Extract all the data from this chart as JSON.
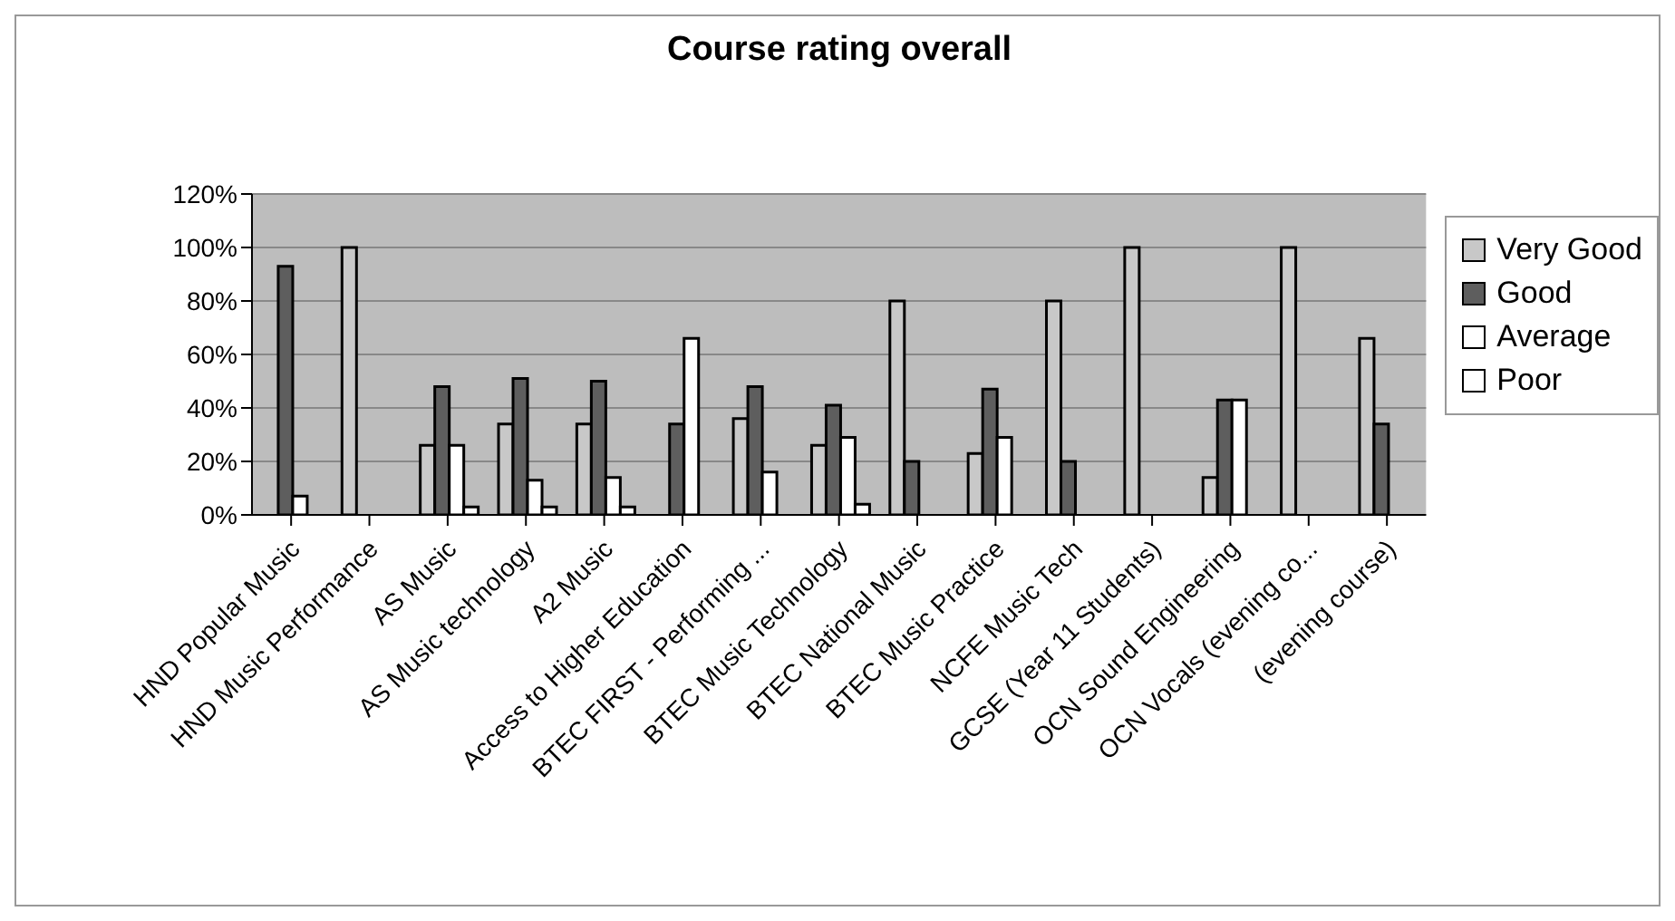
{
  "chart_data": {
    "type": "bar",
    "title": "Course rating overall",
    "categories": [
      "HND Popular Music",
      "HND Music Performance",
      "AS Music",
      "AS Music technology",
      "A2 Music",
      "Access to Higher Education",
      "BTEC FIRST - Performing ...",
      "BTEC Music Technology",
      "BTEC National Music",
      "BTEC Music Practice",
      "NCFE Music Tech",
      "GCSE (Year 11 Students)",
      "OCN Sound Engineering",
      "OCN Vocals (evening co...",
      "(evening course)"
    ],
    "series": [
      {
        "name": "Very Good",
        "color": "#c8c8c8",
        "values": [
          0,
          100,
          26,
          34,
          34,
          0,
          36,
          26,
          80,
          23,
          80,
          100,
          14,
          100,
          66
        ]
      },
      {
        "name": "Good",
        "color": "#5e5e5e",
        "values": [
          93,
          0,
          48,
          51,
          50,
          34,
          48,
          41,
          20,
          47,
          20,
          0,
          43,
          0,
          34
        ]
      },
      {
        "name": "Average",
        "color": "#ffffff",
        "values": [
          7,
          0,
          26,
          13,
          14,
          66,
          16,
          29,
          0,
          29,
          0,
          0,
          43,
          0,
          0
        ]
      },
      {
        "name": "Poor",
        "color": "#ffffff",
        "values": [
          0,
          0,
          3,
          3,
          3,
          0,
          0,
          4,
          0,
          0,
          0,
          0,
          0,
          0,
          0
        ]
      }
    ],
    "ylim": [
      0,
      120
    ],
    "yticks": [
      {
        "value": 0,
        "label": "0%"
      },
      {
        "value": 20,
        "label": "20%"
      },
      {
        "value": 40,
        "label": "40%"
      },
      {
        "value": 60,
        "label": "60%"
      },
      {
        "value": 80,
        "label": "80%"
      },
      {
        "value": 100,
        "label": "100%"
      },
      {
        "value": 120,
        "label": "120%"
      }
    ],
    "grid": "y",
    "legend": "right"
  }
}
